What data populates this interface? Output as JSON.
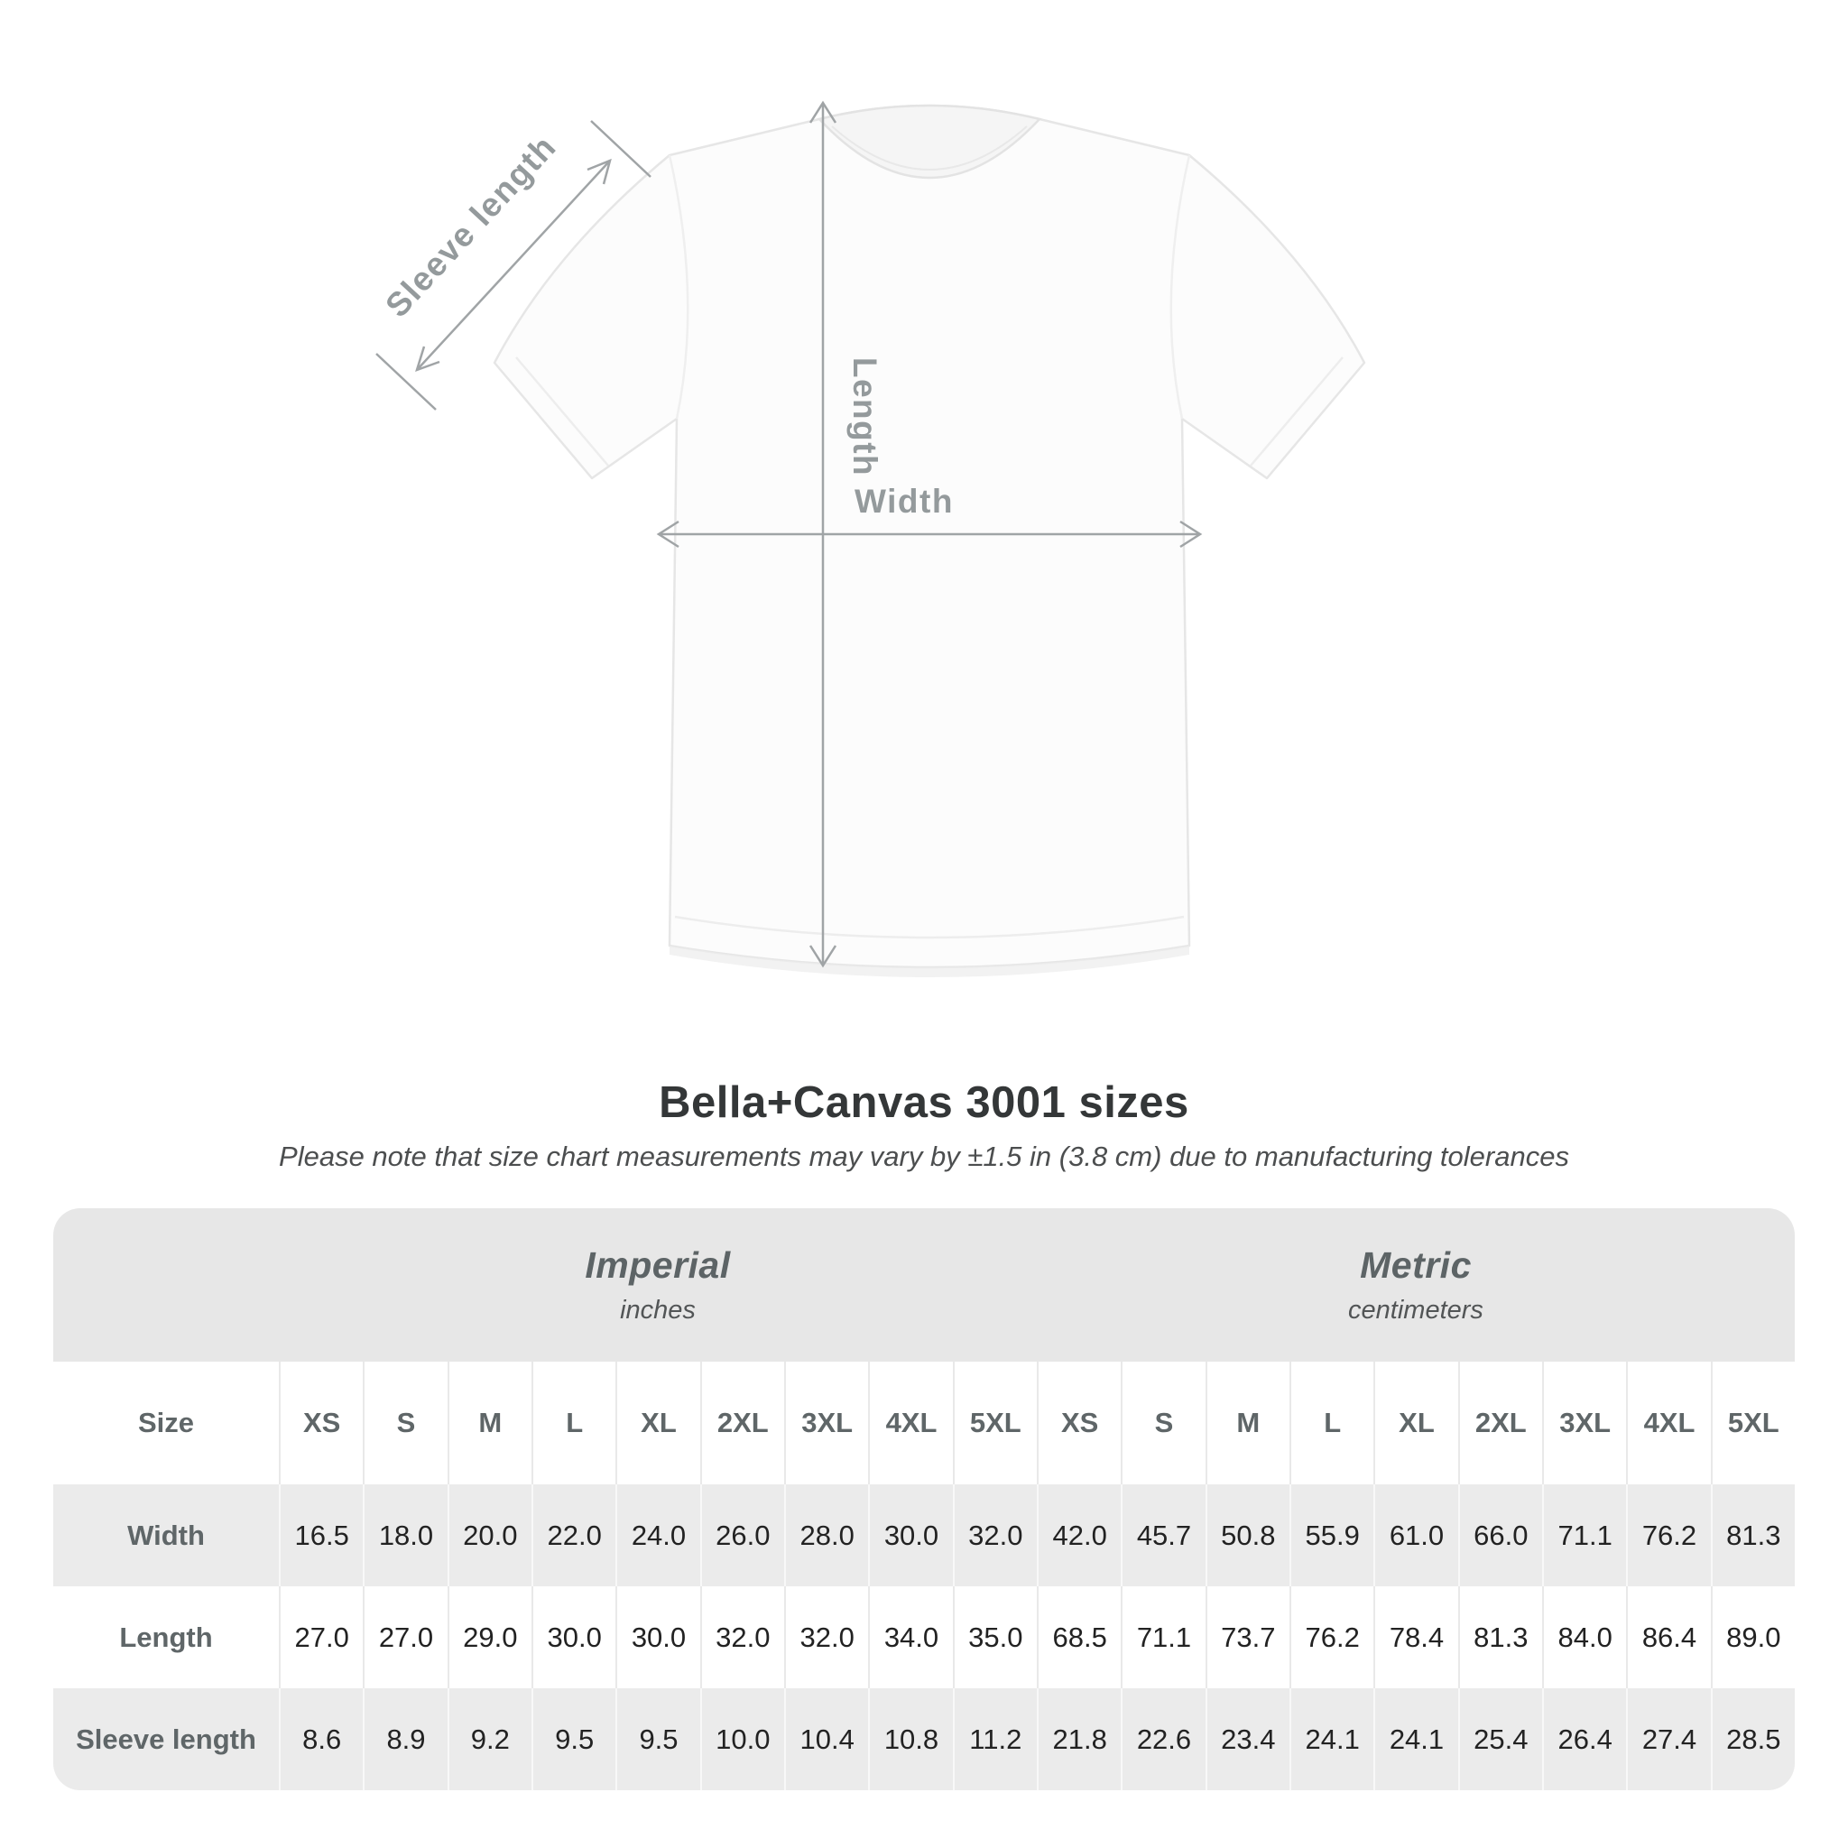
{
  "diagram": {
    "sleeve_length_label": "Sleeve length",
    "length_label": "Length",
    "width_label": "Width"
  },
  "title": "Bella+Canvas 3001 sizes",
  "subtitle": "Please note that size chart measurements may vary by ±1.5 in (3.8 cm) due to manufacturing tolerances",
  "table": {
    "size_header": "Size",
    "groups": [
      {
        "label": "Imperial",
        "sublabel": "inches"
      },
      {
        "label": "Metric",
        "sublabel": "centimeters"
      }
    ],
    "sizes": [
      "XS",
      "S",
      "M",
      "L",
      "XL",
      "2XL",
      "3XL",
      "4XL",
      "5XL"
    ],
    "rows": [
      {
        "label": "Width",
        "imperial": [
          "16.5",
          "18.0",
          "20.0",
          "22.0",
          "24.0",
          "26.0",
          "28.0",
          "30.0",
          "32.0"
        ],
        "metric": [
          "42.0",
          "45.7",
          "50.8",
          "55.9",
          "61.0",
          "66.0",
          "71.1",
          "76.2",
          "81.3"
        ]
      },
      {
        "label": "Length",
        "imperial": [
          "27.0",
          "27.0",
          "29.0",
          "30.0",
          "30.0",
          "32.0",
          "32.0",
          "34.0",
          "35.0"
        ],
        "metric": [
          "68.5",
          "71.1",
          "73.7",
          "76.2",
          "78.4",
          "81.3",
          "84.0",
          "86.4",
          "89.0"
        ]
      },
      {
        "label": "Sleeve length",
        "imperial": [
          "8.6",
          "8.9",
          "9.2",
          "9.5",
          "9.5",
          "10.0",
          "10.4",
          "10.8",
          "11.2"
        ],
        "metric": [
          "21.8",
          "22.6",
          "23.4",
          "24.1",
          "24.1",
          "25.4",
          "26.4",
          "27.4",
          "28.5"
        ]
      }
    ]
  },
  "colors": {
    "band_gray": "#e7e7e7",
    "row_stripe_gray": "#ebebeb",
    "heading_text": "#343738",
    "muted_header_text": "#5f6668",
    "annotation_gray": "#949a9c",
    "value_text": "#222222"
  },
  "chart_data": {
    "type": "table",
    "title": "Bella+Canvas 3001 sizes",
    "note": "Please note that size chart measurements may vary by ±1.5 in (3.8 cm) due to manufacturing tolerances",
    "column_groups": [
      "Imperial (inches)",
      "Metric (centimeters)"
    ],
    "sizes": [
      "XS",
      "S",
      "M",
      "L",
      "XL",
      "2XL",
      "3XL",
      "4XL",
      "5XL"
    ],
    "rows": [
      {
        "measure": "Width",
        "imperial_in": [
          16.5,
          18.0,
          20.0,
          22.0,
          24.0,
          26.0,
          28.0,
          30.0,
          32.0
        ],
        "metric_cm": [
          42.0,
          45.7,
          50.8,
          55.9,
          61.0,
          66.0,
          71.1,
          76.2,
          81.3
        ]
      },
      {
        "measure": "Length",
        "imperial_in": [
          27.0,
          27.0,
          29.0,
          30.0,
          30.0,
          32.0,
          32.0,
          34.0,
          35.0
        ],
        "metric_cm": [
          68.5,
          71.1,
          73.7,
          76.2,
          78.4,
          81.3,
          84.0,
          86.4,
          89.0
        ]
      },
      {
        "measure": "Sleeve length",
        "imperial_in": [
          8.6,
          8.9,
          9.2,
          9.5,
          9.5,
          10.0,
          10.4,
          10.8,
          11.2
        ],
        "metric_cm": [
          21.8,
          22.6,
          23.4,
          24.1,
          24.1,
          25.4,
          26.4,
          27.4,
          28.5
        ]
      }
    ]
  }
}
